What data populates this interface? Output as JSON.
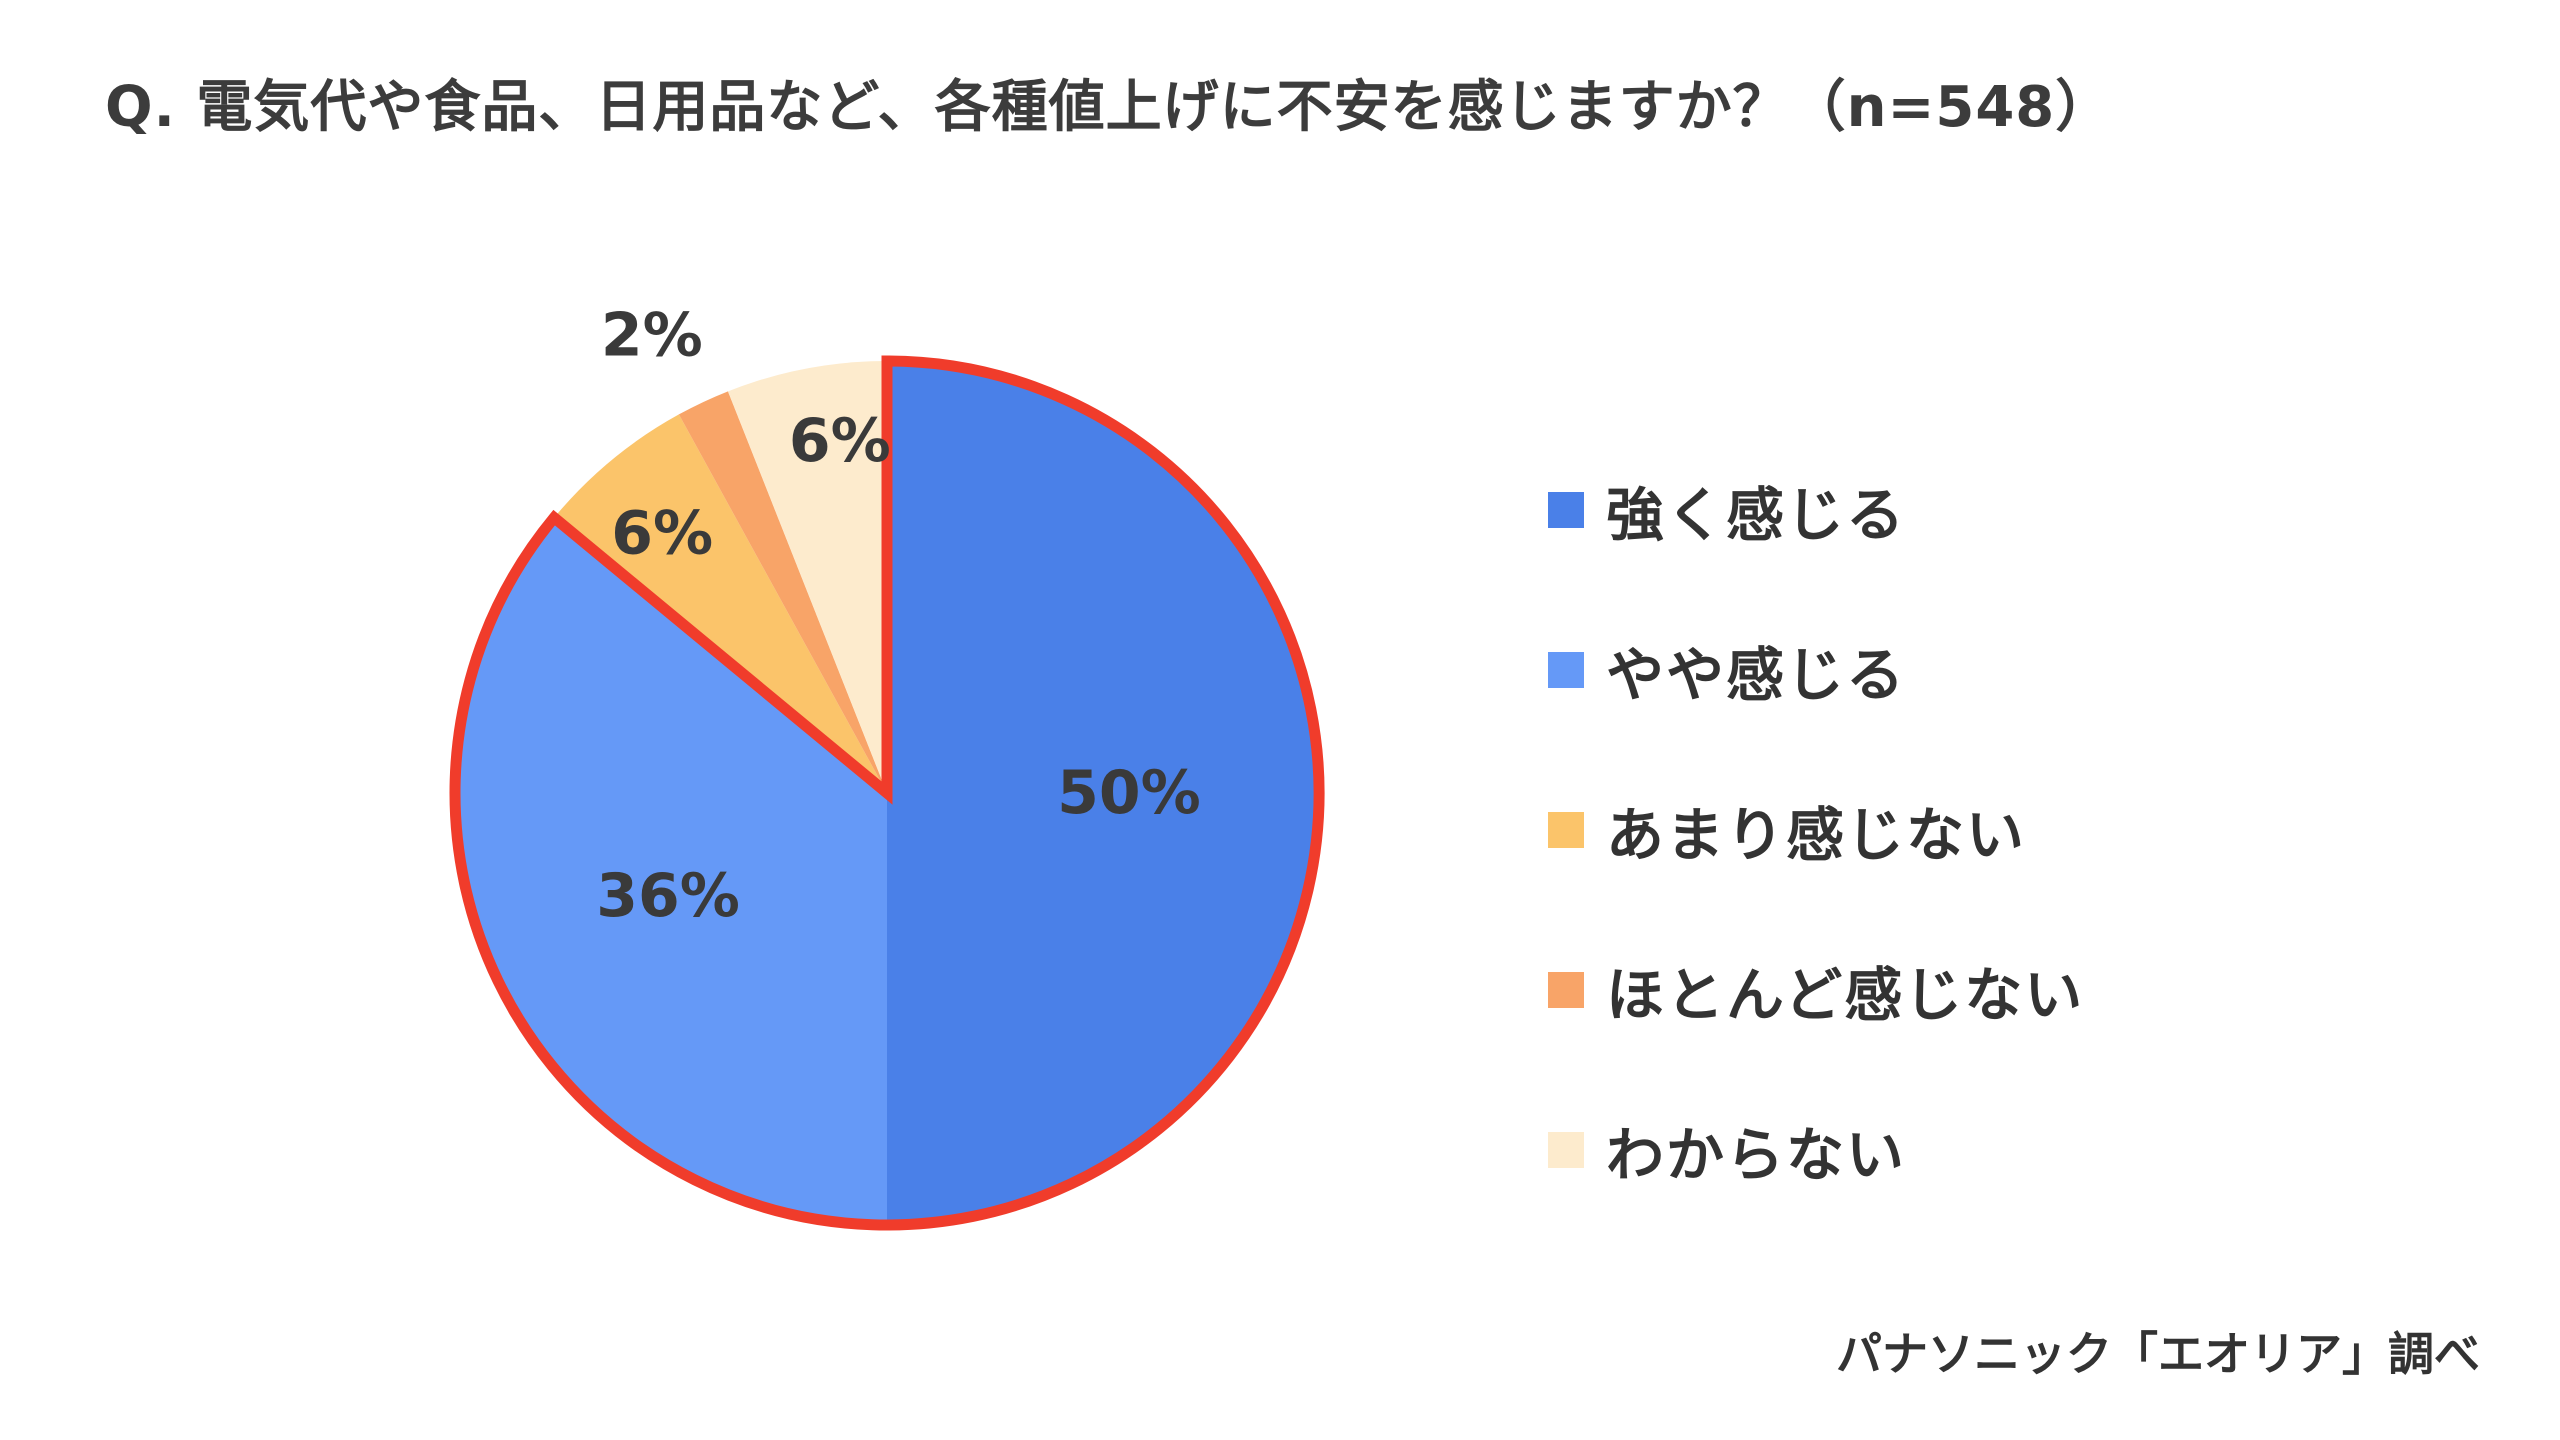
{
  "chart_data": {
    "type": "pie",
    "title": "Q. 電気代や食品、日用品など、各種値上げに不安を感じますか？（n=548）",
    "categories": [
      "強く感じる",
      "やや感じる",
      "あまり感じない",
      "ほとんど感じない",
      "わからない"
    ],
    "values": [
      50,
      36,
      6,
      2,
      6
    ],
    "value_labels": [
      "50%",
      "36%",
      "6%",
      "2%",
      "6%"
    ],
    "unit": "%",
    "colors": [
      "#4a80e8",
      "#6599f7",
      "#fbc46a",
      "#f8a468",
      "#fdebcd"
    ],
    "highlight": {
      "categories": [
        "強く感じる",
        "やや感じる"
      ],
      "outline_color": "#f03c2b"
    },
    "legend_position": "right"
  },
  "source": "パナソニック「エオリア」調べ"
}
